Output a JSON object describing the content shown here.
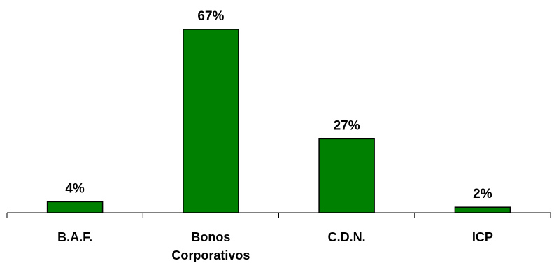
{
  "chart_data": {
    "type": "bar",
    "categories": [
      "B.A.F.",
      "Bonos Corporativos",
      "C.D.N.",
      "ICP"
    ],
    "category_lines": [
      [
        "B.A.F."
      ],
      [
        "Bonos",
        "Corporativos"
      ],
      [
        "C.D.N."
      ],
      [
        "ICP"
      ]
    ],
    "values": [
      4,
      67,
      27,
      2
    ],
    "data_labels": [
      "4%",
      "67%",
      "27%",
      "2%"
    ],
    "unit": "%",
    "ylim": [
      0,
      67
    ],
    "grid": false,
    "legend": "none",
    "colors": {
      "bar_fill": "#008000",
      "bar_stroke": "#000000",
      "axis": "#000000",
      "text": "#000000"
    }
  }
}
